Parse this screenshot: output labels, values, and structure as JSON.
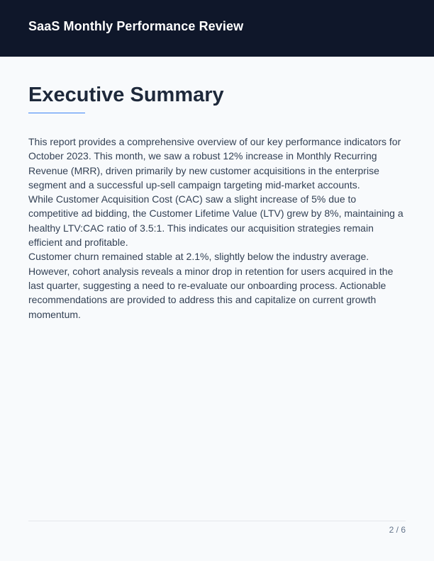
{
  "header": {
    "title": "SaaS Monthly Performance Review"
  },
  "section": {
    "title": "Executive Summary",
    "paragraphs": [
      "This report provides a comprehensive overview of our key performance indicators for October 2023. This month, we saw a robust 12% increase in Monthly Recurring Revenue (MRR), driven primarily by new customer acquisitions in the enterprise segment and a successful up-sell campaign targeting mid-market accounts.",
      "While Customer Acquisition Cost (CAC) saw a slight increase of 5% due to competitive ad bidding, the Customer Lifetime Value (LTV) grew by 8%, maintaining a healthy LTV:CAC ratio of 3.5:1. This indicates our acquisition strategies remain efficient and profitable.",
      "Customer churn remained stable at 2.1%, slightly below the industry average. However, cohort analysis reveals a minor drop in retention for users acquired in the last quarter, suggesting a need to re-evaluate our onboarding process. Actionable recommendations are provided to address this and capitalize on current growth momentum."
    ]
  },
  "footer": {
    "page": "2 / 6"
  },
  "colors": {
    "header_bg": "#0f172a",
    "accent": "#3b82f6",
    "heading": "#1e293b",
    "text": "#334155"
  }
}
